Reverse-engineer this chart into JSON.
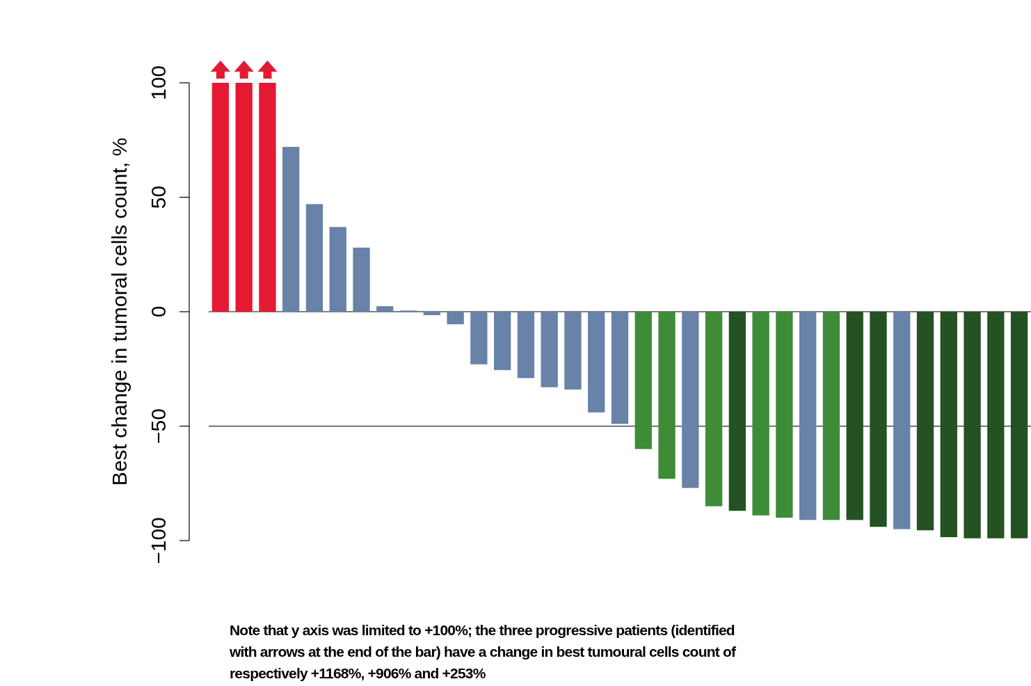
{
  "chart_data": {
    "type": "bar",
    "ylabel": "Best change in tumoral cells count, %",
    "categories": [
      null,
      null,
      null,
      null,
      null,
      null,
      null,
      null,
      null,
      null,
      null,
      null,
      null,
      null,
      null,
      null,
      null,
      null,
      null,
      null,
      null,
      null,
      null,
      null,
      null,
      null,
      null,
      null,
      null,
      null,
      null,
      null,
      null,
      null,
      null
    ],
    "values": [
      100,
      100,
      100,
      72,
      47,
      37,
      28,
      2.4,
      0.5,
      -1.5,
      -5.5,
      -23,
      -25.5,
      -29,
      -33,
      -34,
      -44,
      -49,
      -60,
      -73,
      -77,
      -85,
      -87,
      -89,
      -90,
      -91,
      -91,
      -91,
      -94,
      -95,
      -95.5,
      -98.5,
      -99,
      -99,
      -99
    ],
    "colors": [
      "#e41a32",
      "#e41a32",
      "#e41a32",
      "#6882a8",
      "#6882a8",
      "#6882a8",
      "#6882a8",
      "#6882a8",
      "#6882a8",
      "#6882a8",
      "#6882a8",
      "#6882a8",
      "#6882a8",
      "#6882a8",
      "#6882a8",
      "#6882a8",
      "#6882a8",
      "#6882a8",
      "#3e8c37",
      "#3e8c37",
      "#6882a8",
      "#3e8c37",
      "#245222",
      "#3e8c37",
      "#3e8c37",
      "#6882a8",
      "#3e8c37",
      "#245222",
      "#245222",
      "#6882a8",
      "#245222",
      "#245222",
      "#245222",
      "#245222",
      "#245222"
    ],
    "ylim": [
      -100,
      100
    ],
    "yticks": [
      {
        "value": -100,
        "label": "−100"
      },
      {
        "value": -50,
        "label": "−50"
      },
      0,
      50,
      100
    ],
    "ref_lines": [
      {
        "axis": "y",
        "value": 0,
        "color": "#000000"
      },
      {
        "axis": "y",
        "value": -50,
        "color": "#000000"
      }
    ],
    "annotations": [
      "Note that y axis was limited to +100%; the three progressive patients (identified with arrows at the end of the bar) have a change in best tumoural cells count of respectively +1168%, +906% and +253%"
    ]
  }
}
